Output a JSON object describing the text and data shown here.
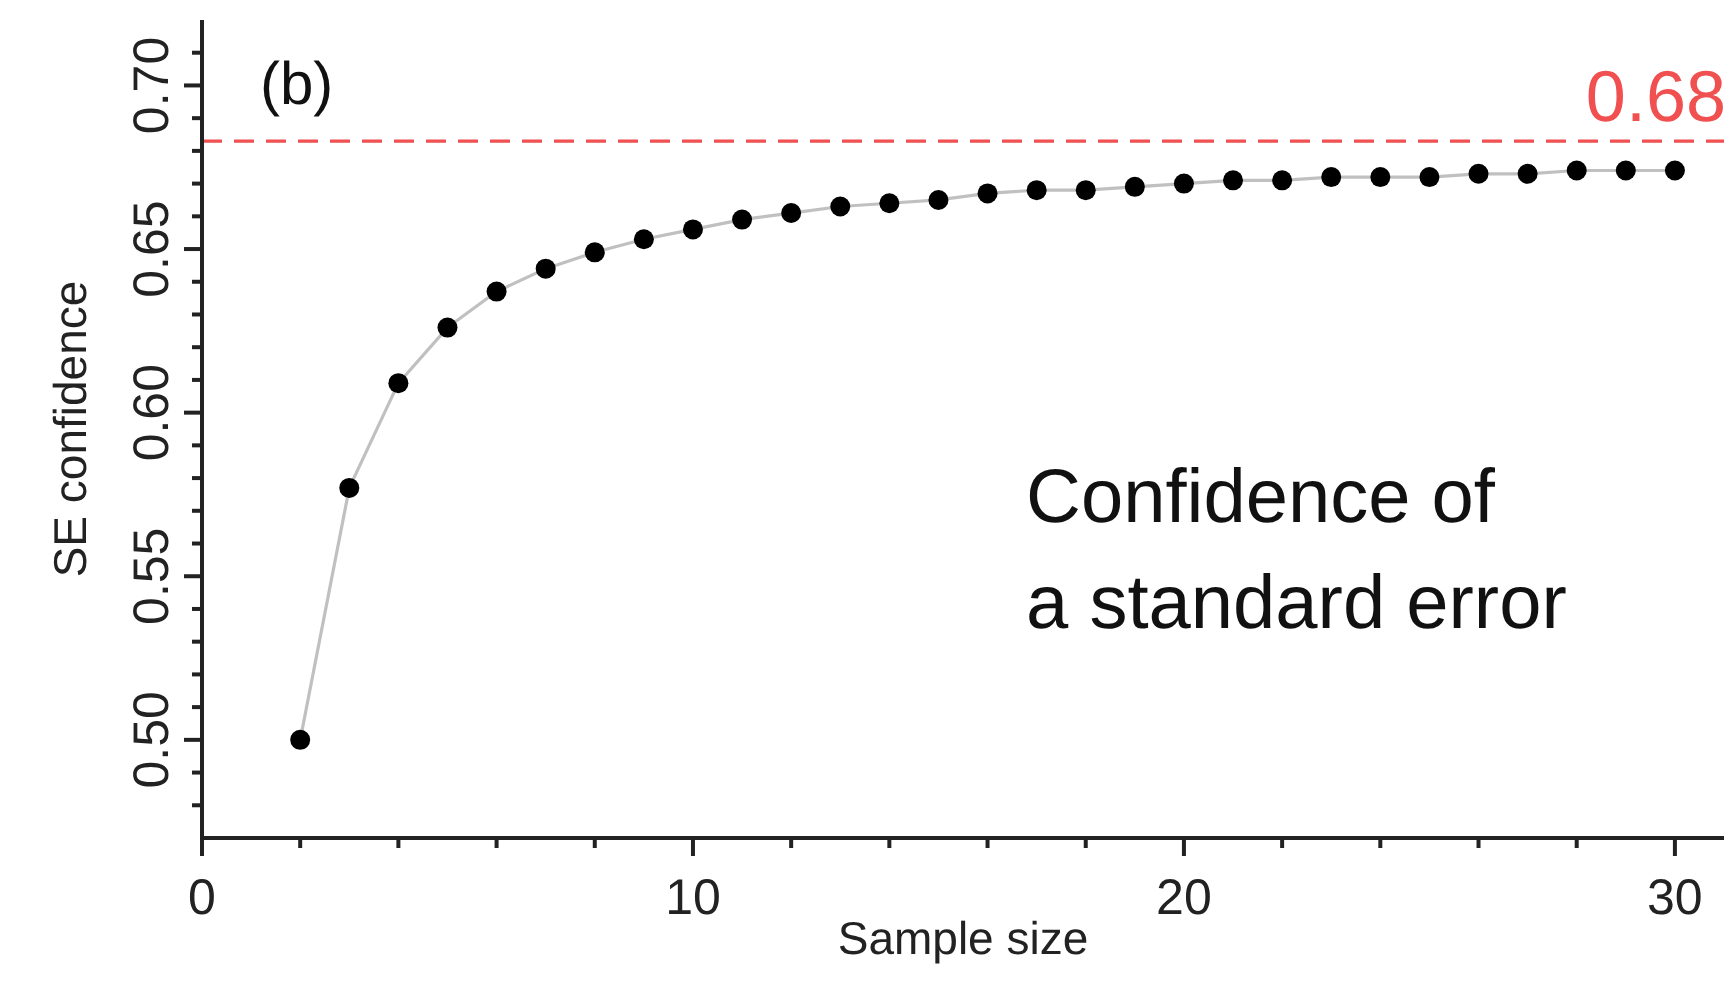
{
  "chart_data": {
    "type": "line",
    "xlabel": "Sample size",
    "ylabel": "SE confidence",
    "x": [
      2,
      3,
      4,
      5,
      6,
      7,
      8,
      9,
      10,
      11,
      12,
      13,
      14,
      15,
      16,
      17,
      18,
      19,
      20,
      21,
      22,
      23,
      24,
      25,
      26,
      27,
      28,
      29,
      30
    ],
    "series": [
      {
        "color": "#000000",
        "values": [
          0.5,
          0.577,
          0.609,
          0.626,
          0.637,
          0.644,
          0.649,
          0.653,
          0.656,
          0.659,
          0.661,
          0.663,
          0.664,
          0.665,
          0.667,
          0.668,
          0.668,
          0.669,
          0.67,
          0.671,
          0.671,
          0.672,
          0.672,
          0.672,
          0.673,
          0.673,
          0.674,
          0.674,
          0.674
        ]
      }
    ],
    "marker": "circle",
    "line_style": "solid",
    "xlim": [
      0,
      31
    ],
    "ylim": [
      0.47,
      0.72
    ],
    "xticks": [
      0,
      {
        "value": 2,
        "label": null
      },
      {
        "value": 4,
        "label": null
      },
      {
        "value": 6,
        "label": null
      },
      {
        "value": 8,
        "label": null
      },
      10,
      {
        "value": 12,
        "label": null
      },
      {
        "value": 14,
        "label": null
      },
      {
        "value": 16,
        "label": null
      },
      {
        "value": 18,
        "label": null
      },
      20,
      {
        "value": 22,
        "label": null
      },
      {
        "value": 24,
        "label": null
      },
      {
        "value": 26,
        "label": null
      },
      {
        "value": 28,
        "label": null
      },
      30
    ],
    "yticks": [
      {
        "value": 0.48,
        "label": null
      },
      {
        "value": 0.49,
        "label": null
      },
      {
        "value": 0.5,
        "label": "0.50"
      },
      {
        "value": 0.51,
        "label": null
      },
      {
        "value": 0.52,
        "label": null
      },
      {
        "value": 0.53,
        "label": null
      },
      {
        "value": 0.54,
        "label": null
      },
      {
        "value": 0.55,
        "label": "0.55"
      },
      {
        "value": 0.56,
        "label": null
      },
      {
        "value": 0.57,
        "label": null
      },
      {
        "value": 0.58,
        "label": null
      },
      {
        "value": 0.59,
        "label": null
      },
      {
        "value": 0.6,
        "label": "0.60"
      },
      {
        "value": 0.61,
        "label": null
      },
      {
        "value": 0.62,
        "label": null
      },
      {
        "value": 0.63,
        "label": null
      },
      {
        "value": 0.64,
        "label": null
      },
      {
        "value": 0.65,
        "label": "0.65"
      },
      {
        "value": 0.66,
        "label": null
      },
      {
        "value": 0.67,
        "label": null
      },
      {
        "value": 0.68,
        "label": null
      },
      {
        "value": 0.69,
        "label": null
      },
      {
        "value": 0.7,
        "label": "0.70"
      },
      {
        "value": 0.71,
        "label": null
      }
    ],
    "ref_lines": [
      {
        "axis": "y",
        "value": 0.683,
        "label": "0.68",
        "color": "#f05050",
        "line_style": "dashed"
      }
    ],
    "annotations": [
      "(b)",
      "Confidence of\na standard error"
    ]
  }
}
